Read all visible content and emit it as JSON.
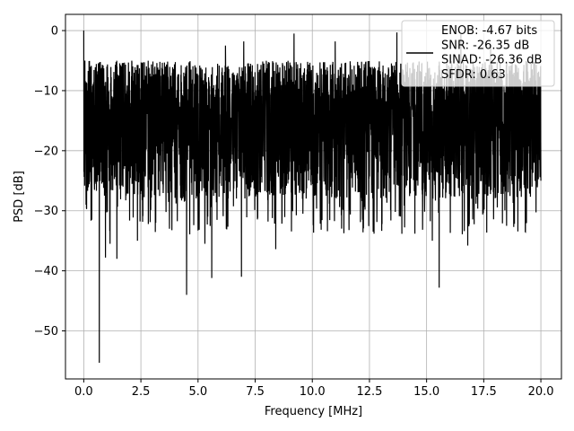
{
  "chart_data": {
    "type": "line",
    "title": "",
    "xlabel": "Frequency [MHz]",
    "ylabel": "PSD [dB]",
    "xlim": [
      -0.8,
      20.9
    ],
    "ylim": [
      -58,
      2.7
    ],
    "xticks": [
      0.0,
      2.5,
      5.0,
      7.5,
      10.0,
      12.5,
      15.0,
      17.5,
      20.0
    ],
    "xtick_labels": [
      "0.0",
      "2.5",
      "5.0",
      "7.5",
      "10.0",
      "12.5",
      "15.0",
      "17.5",
      "20.0"
    ],
    "yticks": [
      0,
      -10,
      -20,
      -30,
      -40,
      -50
    ],
    "ytick_labels": [
      "0",
      "−10",
      "−20",
      "−30",
      "−40",
      "−50"
    ],
    "grid": true,
    "legend_position": "top-right",
    "legend_lines": [
      "ENOB: -4.67 bits",
      "SNR: -26.35 dB",
      "SINAD: -26.36 dB",
      "SFDR: 0.63"
    ],
    "series_color": "#000000",
    "series": [
      {
        "x_range": [
          0,
          20
        ],
        "description": "dense noisy PSD trace, mostly between -5 and -28 dB",
        "notable_points": [
          {
            "x": 0.0,
            "y": 0.0
          },
          {
            "x": 0.05,
            "y": -5
          },
          {
            "x": 0.1,
            "y": -29
          },
          {
            "x": 0.35,
            "y": -31.5
          },
          {
            "x": 0.68,
            "y": -55.3
          },
          {
            "x": 0.95,
            "y": -37.8
          },
          {
            "x": 1.15,
            "y": -35.5
          },
          {
            "x": 1.45,
            "y": -38
          },
          {
            "x": 2.35,
            "y": -35
          },
          {
            "x": 3.15,
            "y": -32
          },
          {
            "x": 3.75,
            "y": -33
          },
          {
            "x": 4.5,
            "y": -44
          },
          {
            "x": 5.3,
            "y": -35.5
          },
          {
            "x": 5.6,
            "y": -41.2
          },
          {
            "x": 6.9,
            "y": -41
          },
          {
            "x": 8.4,
            "y": -36.4
          },
          {
            "x": 12.2,
            "y": -31.5
          },
          {
            "x": 15.55,
            "y": -42.8
          },
          {
            "x": 15.25,
            "y": -35
          },
          {
            "x": 16.8,
            "y": -35.8
          },
          {
            "x": 18.5,
            "y": -32.5
          },
          {
            "x": 20.0,
            "y": -25
          }
        ],
        "upper_envelope_peaks": [
          {
            "x": 6.2,
            "y": -2.5
          },
          {
            "x": 7.0,
            "y": -1.8
          },
          {
            "x": 9.2,
            "y": -0.5
          },
          {
            "x": 11.0,
            "y": -1.8
          },
          {
            "x": 13.7,
            "y": -0.3
          },
          {
            "x": 16.5,
            "y": -0.6
          },
          {
            "x": 17.8,
            "y": -2.5
          }
        ]
      }
    ]
  }
}
